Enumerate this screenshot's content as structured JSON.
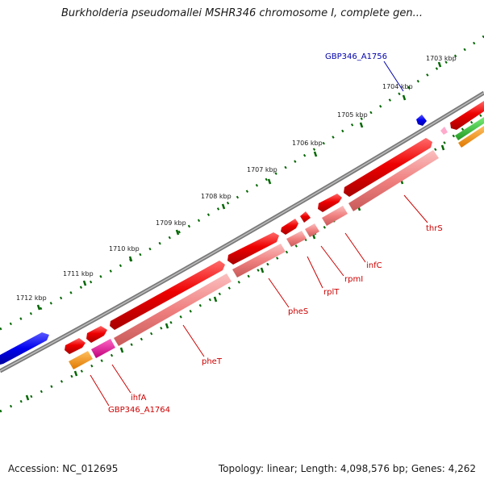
{
  "title": "Burkholderia pseudomallei MSHR346 chromosome I, complete gen...",
  "footer": {
    "accession": "Accession: NC_012695",
    "summary": "Topology: linear; Length: 4,098,576 bp; Genes: 4,262"
  },
  "ruler": {
    "ticks": [
      "1703 kbp",
      "1704 kbp",
      "1705 kbp",
      "1706 kbp",
      "1707 kbp",
      "1708 kbp",
      "1709 kbp",
      "1710 kbp",
      "1711 kbp",
      "1712 kbp"
    ]
  },
  "gene_labels": {
    "gbp346_a1756": "GBP346_A1756",
    "thrS": "thrS",
    "infC": "infC",
    "rpmI": "rpmI",
    "rplT": "rplT",
    "pheS": "pheS",
    "pheT": "pheT",
    "ihfA": "ihfA",
    "gbp346_a1764": "GBP346_A1764"
  },
  "colors": {
    "cds_red": "#ee0000",
    "cds_light": "#f08080",
    "gene_blue": "#0000ee",
    "orange": "#ff9900",
    "magenta": "#ee1199",
    "green": "#33cc33",
    "pink": "#ffaacc",
    "label_red": "#cc0000",
    "label_blue": "#0000aa",
    "ruler_green": "#006600"
  }
}
